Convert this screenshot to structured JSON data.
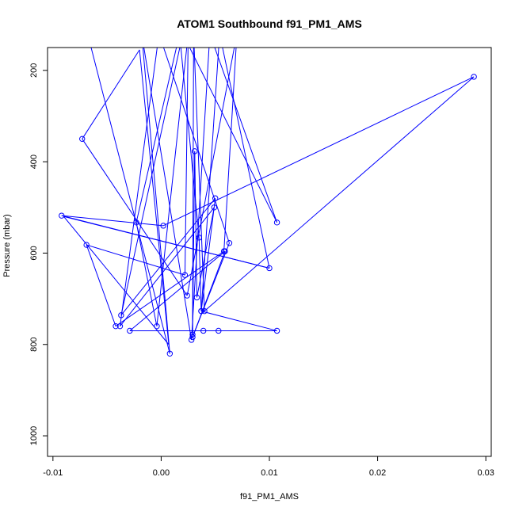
{
  "chart_data": {
    "type": "line",
    "title": "ATOM1 Southbound f91_PM1_AMS",
    "xlabel": "f91_PM1_AMS",
    "ylabel": "Pressure (mbar)",
    "xlim": [
      -0.0105,
      0.0305
    ],
    "ylim": [
      1045,
      150
    ],
    "y_reversed": true,
    "grid": false,
    "legend": "none",
    "x_ticks": [
      -0.01,
      0.0,
      0.01,
      0.02,
      0.03
    ],
    "x_tick_labels": [
      "-0.01",
      "0.00",
      "0.01",
      "0.02",
      "0.03"
    ],
    "y_ticks": [
      200,
      400,
      600,
      800,
      1000
    ],
    "y_tick_labels": [
      "200",
      "400",
      "600",
      "800",
      "1000"
    ],
    "series": [
      {
        "color": "#0000ff",
        "marker": "open-circle",
        "points": [
          {
            "x": -0.0068,
            "y": 120,
            "marker": false
          },
          {
            "x": 0.0008,
            "y": 820
          },
          {
            "x": -0.0018,
            "y": 120,
            "marker": false
          },
          {
            "x": 0.0028,
            "y": 790
          },
          {
            "x": 0.0045,
            "y": 120,
            "marker": false
          },
          {
            "x": 0.0107,
            "y": 533
          },
          {
            "x": 0.002,
            "y": 120,
            "marker": false
          },
          {
            "x": -0.0037,
            "y": 736
          },
          {
            "x": 0.005,
            "y": 480
          },
          {
            "x": 0.0037,
            "y": 727
          },
          {
            "x": 0.0054,
            "y": 120,
            "marker": false
          },
          {
            "x": 0.01,
            "y": 633
          },
          {
            "x": -0.0092,
            "y": 518
          },
          {
            "x": 0.0002,
            "y": 540
          },
          {
            "x": 0.0289,
            "y": 214
          },
          {
            "x": 0.004,
            "y": 727
          },
          {
            "x": 0.003,
            "y": 120,
            "marker": false
          },
          {
            "x": 0.0029,
            "y": 778
          },
          {
            "x": 0.0031,
            "y": 377
          },
          {
            "x": 0.0033,
            "y": 697
          },
          {
            "x": 0.0049,
            "y": 500
          },
          {
            "x": -0.0038,
            "y": 760
          },
          {
            "x": -0.0002,
            "y": 120,
            "marker": false
          },
          {
            "x": 0.0063,
            "y": 578
          },
          {
            "x": 0.0029,
            "y": 784
          },
          {
            "x": 0.0059,
            "y": 596
          },
          {
            "x": -0.0029,
            "y": 770
          },
          {
            "x": 0.0053,
            "y": 770
          },
          {
            "x": 0.0039,
            "y": 770
          },
          {
            "x": 0.0107,
            "y": 770
          },
          {
            "x": 0.0037,
            "y": 727
          },
          {
            "x": 0.0035,
            "y": 566
          },
          {
            "x": 0.0017,
            "y": 120,
            "marker": false
          },
          {
            "x": -0.0023,
            "y": 533
          },
          {
            "x": -0.0004,
            "y": 760
          },
          {
            "x": 0.0025,
            "y": 120,
            "marker": false
          },
          {
            "x": 0.0022,
            "y": 648
          },
          {
            "x": -0.0069,
            "y": 582
          },
          {
            "x": -0.0042,
            "y": 760
          },
          {
            "x": 0.0058,
            "y": 596
          },
          {
            "x": 0.007,
            "y": 120,
            "marker": false
          },
          {
            "x": 0.0024,
            "y": 693
          },
          {
            "x": -0.0073,
            "y": 350
          },
          {
            "x": -0.002,
            "y": 155,
            "marker": false
          },
          {
            "x": 0.0007,
            "y": 800,
            "marker": false
          },
          {
            "x": -0.009,
            "y": 520,
            "marker": false
          },
          {
            "x": 0.01,
            "y": 633,
            "marker": false
          }
        ]
      }
    ]
  }
}
